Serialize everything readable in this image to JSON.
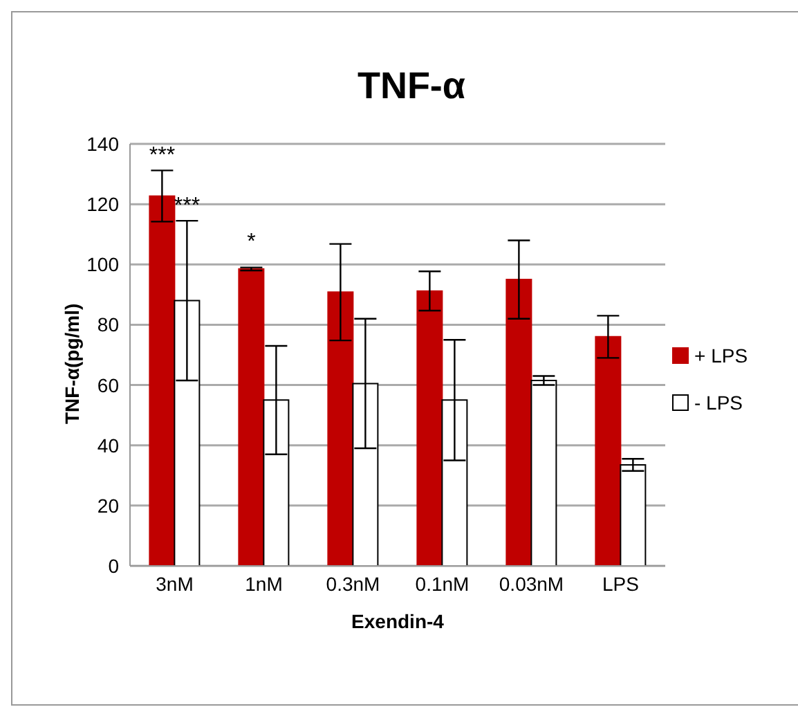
{
  "chart_data": {
    "type": "bar",
    "title": "TNF-α",
    "xlabel": "Exendin-4",
    "ylabel": "TNF-α(pg/ml)",
    "categories": [
      "3nM",
      "1nM",
      "0.3nM",
      "0.1nM",
      "0.03nM",
      "LPS"
    ],
    "series": [
      {
        "name": "+ LPS",
        "color": "#c00000",
        "values": [
          122.7,
          98.5,
          90.8,
          91.2,
          95,
          76
        ],
        "errors": [
          8.5,
          0.5,
          16,
          6.5,
          13,
          7
        ]
      },
      {
        "name": "- LPS",
        "color": "#ffffff",
        "values": [
          88,
          55,
          60.5,
          55,
          61.5,
          33.5
        ],
        "errors": [
          26.5,
          18,
          21.5,
          20,
          1.5,
          2
        ]
      }
    ],
    "ylim": [
      0,
      140
    ],
    "yticks": [
      0,
      20,
      40,
      60,
      80,
      100,
      120,
      140
    ],
    "grid": "y",
    "legend": "right",
    "annotations": [
      {
        "text": "***",
        "x": "3nM",
        "y": 131.2
      },
      {
        "text": "***",
        "x": "3nM",
        "y": 114.5
      },
      {
        "text": "*",
        "x": "1nM",
        "y": 99
      }
    ]
  }
}
